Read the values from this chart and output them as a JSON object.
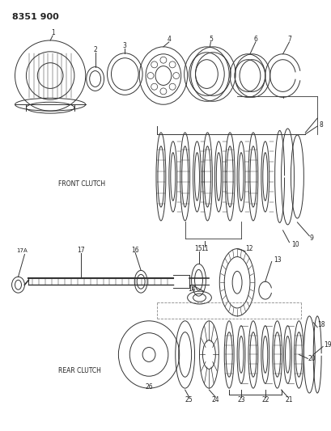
{
  "title": "8351 900",
  "bg_color": "#ffffff",
  "lc": "#333333",
  "front_clutch_label": "FRONT CLUTCH",
  "rear_clutch_label": "REAR CLUTCH",
  "figsize": [
    4.1,
    5.33
  ],
  "dpi": 100
}
